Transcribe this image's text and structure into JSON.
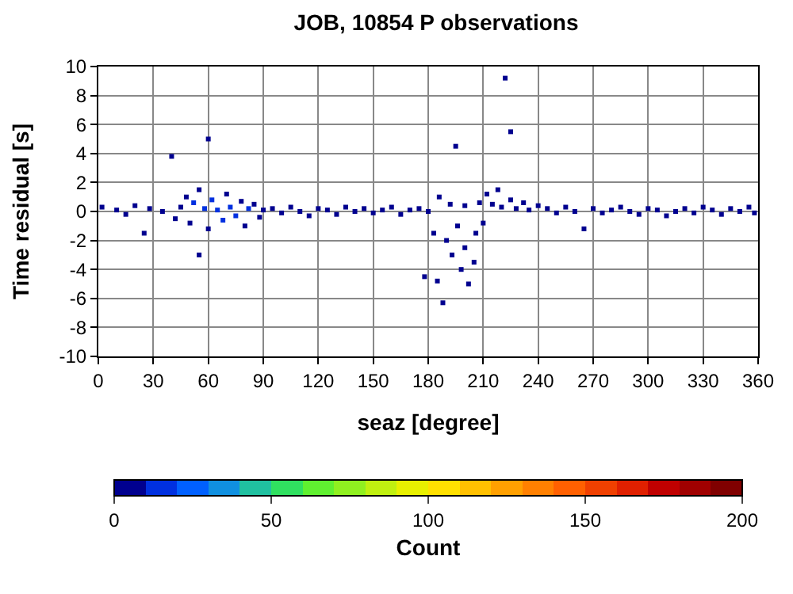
{
  "chart_data": {
    "type": "scatter",
    "title": "JOB, 10854 P observations",
    "xlabel": "seaz [degree]",
    "ylabel": "Time residual [s]",
    "clabel": "Count",
    "xlim": [
      0,
      360
    ],
    "xticks": [
      0,
      30,
      60,
      90,
      120,
      150,
      180,
      210,
      240,
      270,
      300,
      330,
      360
    ],
    "ylim": [
      -10,
      10
    ],
    "yticks": [
      -10,
      -8,
      -6,
      -4,
      -2,
      0,
      2,
      4,
      6,
      8,
      10
    ],
    "clim": [
      0,
      200
    ],
    "cticks": [
      0,
      50,
      100,
      150,
      200
    ],
    "grid": true,
    "marker": "square",
    "legend": false,
    "x": [
      2,
      10,
      15,
      20,
      25,
      28,
      35,
      40,
      42,
      45,
      48,
      50,
      52,
      55,
      55,
      58,
      60,
      60,
      62,
      65,
      68,
      70,
      72,
      75,
      78,
      80,
      82,
      85,
      88,
      90,
      95,
      100,
      105,
      110,
      115,
      120,
      125,
      130,
      135,
      140,
      145,
      150,
      155,
      160,
      165,
      170,
      175,
      178,
      180,
      183,
      185,
      186,
      188,
      190,
      192,
      193,
      195,
      196,
      198,
      200,
      200,
      202,
      205,
      206,
      208,
      210,
      212,
      215,
      218,
      220,
      222,
      225,
      225,
      228,
      232,
      235,
      240,
      245,
      250,
      255,
      260,
      265,
      270,
      275,
      280,
      285,
      290,
      295,
      300,
      305,
      310,
      315,
      320,
      325,
      330,
      335,
      340,
      345,
      350,
      355,
      358
    ],
    "values": [
      0.3,
      0.1,
      -0.2,
      0.4,
      -1.5,
      0.2,
      0.0,
      3.8,
      -0.5,
      0.3,
      1.0,
      -0.8,
      0.6,
      1.5,
      -3.0,
      0.2,
      5.0,
      -1.2,
      0.8,
      0.1,
      -0.6,
      1.2,
      0.3,
      -0.3,
      0.7,
      -1.0,
      0.2,
      0.5,
      -0.4,
      0.1,
      0.2,
      -0.1,
      0.3,
      0.0,
      -0.3,
      0.2,
      0.1,
      -0.2,
      0.3,
      0.0,
      0.2,
      -0.1,
      0.1,
      0.3,
      -0.2,
      0.1,
      0.2,
      -4.5,
      0.0,
      -1.5,
      -4.8,
      1.0,
      -6.3,
      -2.0,
      0.5,
      -3.0,
      4.5,
      -1.0,
      -4.0,
      -2.5,
      0.4,
      -5.0,
      -3.5,
      -1.5,
      0.6,
      -0.8,
      1.2,
      0.5,
      1.5,
      0.3,
      9.2,
      5.5,
      0.8,
      0.2,
      0.6,
      0.1,
      0.4,
      0.2,
      -0.1,
      0.3,
      0.0,
      -1.2,
      0.2,
      -0.1,
      0.1,
      0.3,
      0.0,
      -0.2,
      0.2,
      0.1,
      -0.3,
      0.0,
      0.2,
      -0.1,
      0.3,
      0.1,
      -0.2,
      0.2,
      0.0,
      0.3,
      -0.1
    ],
    "cvalues": [
      4,
      4,
      4,
      4,
      1,
      4,
      4,
      1,
      6,
      8,
      8,
      8,
      10,
      8,
      1,
      12,
      1,
      8,
      10,
      12,
      10,
      8,
      12,
      10,
      8,
      6,
      10,
      8,
      6,
      6,
      4,
      4,
      4,
      4,
      4,
      4,
      4,
      4,
      4,
      4,
      4,
      4,
      4,
      4,
      4,
      4,
      4,
      1,
      4,
      2,
      1,
      2,
      1,
      2,
      6,
      2,
      1,
      3,
      1,
      2,
      6,
      1,
      1,
      3,
      6,
      4,
      4,
      6,
      4,
      8,
      1,
      1,
      4,
      8,
      6,
      8,
      6,
      6,
      4,
      4,
      4,
      1,
      4,
      4,
      4,
      4,
      4,
      4,
      4,
      4,
      4,
      4,
      4,
      4,
      4,
      4,
      4,
      4,
      4,
      4,
      4
    ]
  }
}
